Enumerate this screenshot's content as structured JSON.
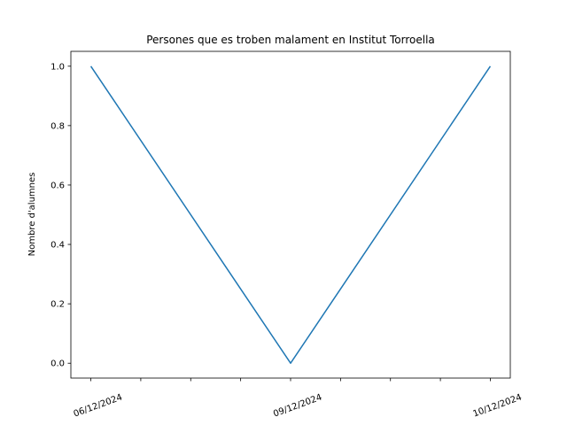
{
  "chart_data": {
    "type": "line",
    "title": "Persones que es troben malament en Institut Torroella",
    "xlabel": "",
    "ylabel": "Nombre d'alumnes",
    "x_tick_labels": [
      "06/12/2024",
      "09/12/2024",
      "10/12/2024"
    ],
    "x_tick_positions": [
      0,
      2,
      4
    ],
    "x_minor_positions": [
      0,
      0.5,
      1,
      1.5,
      2,
      2.5,
      3,
      3.5,
      4
    ],
    "xlim": [
      -0.2,
      4.2
    ],
    "y_ticks": [
      0.0,
      0.2,
      0.4,
      0.6,
      0.8,
      1.0
    ],
    "y_tick_labels": [
      "0.0",
      "0.2",
      "0.4",
      "0.6",
      "0.8",
      "1.0"
    ],
    "ylim": [
      -0.05,
      1.05
    ],
    "grid": false,
    "series": [
      {
        "x": [
          0,
          2,
          4
        ],
        "values": [
          1,
          0,
          1
        ],
        "color": "#1f77b4"
      }
    ]
  }
}
